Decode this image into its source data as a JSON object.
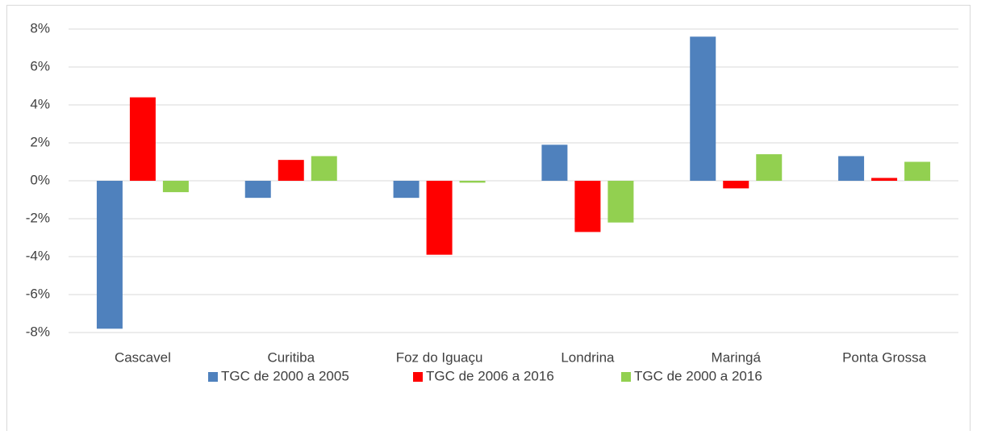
{
  "chart_data": {
    "type": "bar",
    "categories": [
      "Cascavel",
      "Curitiba",
      "Foz do Iguaçu",
      "Londrina",
      "Maringá",
      "Ponta Grossa"
    ],
    "series": [
      {
        "name": "TGC de 2000 a 2005",
        "color": "#4f81bd",
        "values": [
          -7.8,
          -0.9,
          -0.9,
          1.9,
          7.6,
          1.3
        ]
      },
      {
        "name": "TGC de 2006 a 2016",
        "color": "#ff0000",
        "values": [
          4.4,
          1.1,
          -3.9,
          -2.7,
          -0.4,
          0.15
        ]
      },
      {
        "name": "TGC de 2000 a 2016",
        "color": "#92d050",
        "values": [
          -0.6,
          1.3,
          -0.1,
          -2.2,
          1.4,
          1.0
        ]
      }
    ],
    "ylim": [
      -8,
      8
    ],
    "yticks": [
      {
        "value": -8,
        "label": "-8%"
      },
      {
        "value": -6,
        "label": "-6%"
      },
      {
        "value": -4,
        "label": "-4%"
      },
      {
        "value": -2,
        "label": "-2%"
      },
      {
        "value": 0,
        "label": "0%"
      },
      {
        "value": 2,
        "label": "2%"
      },
      {
        "value": 4,
        "label": "4%"
      },
      {
        "value": 6,
        "label": "6%"
      },
      {
        "value": 8,
        "label": "8%"
      }
    ],
    "grid": true,
    "legend": "bottom"
  }
}
